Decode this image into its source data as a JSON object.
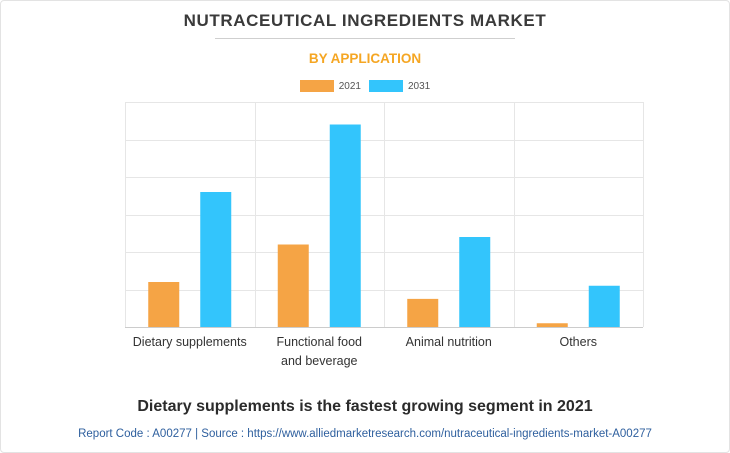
{
  "title": "NUTRACEUTICAL INGREDIENTS MARKET",
  "subtitle": "BY APPLICATION",
  "colors": {
    "series_2021": "#f5a445",
    "series_2031": "#33c5fc",
    "subtitle": "#f5a623",
    "grid": "#e6e6e6"
  },
  "chart_data": {
    "type": "bar",
    "title": "NUTRACEUTICAL INGREDIENTS MARKET",
    "subtitle": "BY APPLICATION",
    "categories": [
      [
        "Dietary supplements"
      ],
      [
        "Functional food",
        "and beverage"
      ],
      [
        "Animal nutrition"
      ],
      [
        "Others"
      ]
    ],
    "series": [
      {
        "name": "2021",
        "values": [
          12,
          22,
          7.5,
          1
        ]
      },
      {
        "name": "2031",
        "values": [
          36,
          54,
          24,
          11
        ]
      }
    ],
    "ylim": [
      0,
      60
    ],
    "ytick_step": 10,
    "grid": true,
    "legend": "top-center",
    "xlabel": "",
    "ylabel": ""
  },
  "footer": {
    "headline": "Dietary supplements is the fastest growing segment in 2021",
    "source": "Report Code : A00277  |  Source : https://www.alliedmarketresearch.com/nutraceutical-ingredients-market-A00277"
  }
}
